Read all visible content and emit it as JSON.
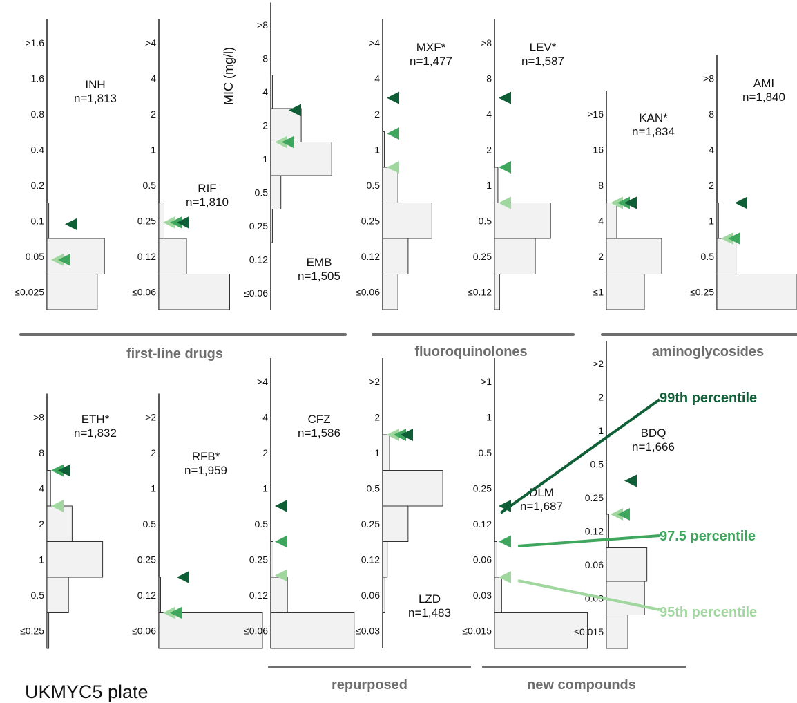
{
  "plate_label": "UKMYC5 plate",
  "colors": {
    "p99": "#0e5e36",
    "p975": "#3fa65e",
    "p95": "#9fd79e",
    "bar_fill": "#f2f2f2",
    "bar_stroke": "#333333",
    "group_line": "#6e6e6e"
  },
  "legend": {
    "p99": "99th percentile",
    "p975": "97.5 percentile",
    "p95": "95th percentile"
  },
  "chart_data": {
    "type": "bar",
    "orientation": "horizontal",
    "ylabel": "MIC (mg/l)",
    "groups": [
      {
        "label": "first-line drugs"
      },
      {
        "label": "fluoroquinolones"
      },
      {
        "label": "aminoglycosides"
      },
      {
        "label": "repurposed"
      },
      {
        "label": "new compounds"
      }
    ],
    "panels": [
      {
        "drug": "INH",
        "n": "n=1,813",
        "ticks": [
          "≤0.025",
          "0.05",
          "0.1",
          "0.2",
          "0.4",
          "0.8",
          "1.6",
          ">1.6"
        ],
        "values": [
          0.28,
          0.32,
          0.01,
          0.0,
          0,
          0,
          0,
          0
        ],
        "p95": 1.4,
        "p975": 1.4,
        "p99": 2.4
      },
      {
        "drug": "RIF",
        "n": "n=1,810",
        "ticks": [
          "≤0.06",
          "0.12",
          "0.25",
          "0.5",
          "1",
          "2",
          "4",
          ">4"
        ],
        "values": [
          0.41,
          0.16,
          0.03,
          0,
          0,
          0,
          0,
          0
        ],
        "p95": 2.45,
        "p975": 2.45,
        "p99": 2.45
      },
      {
        "drug": "EMB",
        "n": "n=1,505",
        "ticks": [
          "≤0.06",
          "0.12",
          "0.25",
          "0.5",
          "1",
          "2",
          "4",
          "8",
          ">8"
        ],
        "values": [
          0,
          0,
          0.01,
          0.06,
          0.36,
          0.18,
          0.01,
          0,
          0
        ],
        "p95": 5.0,
        "p975": 5.0,
        "p99": 5.95
      },
      {
        "drug": "MXF*",
        "n": "n=1,477",
        "ticks": [
          "≤0.06",
          "0.12",
          "0.25",
          "0.5",
          "1",
          "2",
          "4",
          ">4"
        ],
        "values": [
          0.09,
          0.15,
          0.29,
          0.09,
          0.01,
          0,
          0,
          0
        ],
        "p95": 4.0,
        "p975": 4.95,
        "p99": 5.95
      },
      {
        "drug": "LEV*",
        "n": "n=1,587",
        "ticks": [
          "≤0.12",
          "0.25",
          "0.5",
          "1",
          "2",
          "4",
          "8",
          ">8"
        ],
        "values": [
          0.03,
          0.24,
          0.33,
          0.02,
          0,
          0,
          0,
          0
        ],
        "p95": 3.0,
        "p975": 4.0,
        "p99": 5.95
      },
      {
        "drug": "KAN*",
        "n": "n=1,834",
        "ticks": [
          "≤1",
          "2",
          "4",
          "8",
          "16",
          ">16"
        ],
        "values": [
          0.22,
          0.32,
          0.06,
          0,
          0,
          0
        ],
        "p95": 3.0,
        "p975": 3.0,
        "p99": 3.0
      },
      {
        "drug": "AMI",
        "n": "n=1,840",
        "ticks": [
          "≤0.25",
          "0.5",
          "1",
          "2",
          "4",
          "8",
          ">8"
        ],
        "values": [
          0.5,
          0.12,
          0.01,
          0,
          0,
          0,
          0
        ],
        "p95": 2.0,
        "p975": 2.0,
        "p99": 3.0
      },
      {
        "drug": "ETH*",
        "n": "n=1,832",
        "ticks": [
          "≤0.25",
          "0.5",
          "1",
          "2",
          "4",
          "8",
          ">8"
        ],
        "values": [
          0.01,
          0.12,
          0.31,
          0.14,
          0.02,
          0,
          0
        ],
        "p95": 4.0,
        "p975": 5.0,
        "p99": 5.0
      },
      {
        "drug": "RFB*",
        "n": "n=1,959",
        "ticks": [
          "≤0.06",
          "0.12",
          "0.25",
          "0.5",
          "1",
          "2",
          ">2"
        ],
        "values": [
          0.6,
          0.01,
          0,
          0,
          0,
          0,
          0
        ],
        "p95": 1.0,
        "p975": 1.0,
        "p99": 2.0
      },
      {
        "drug": "CFZ",
        "n": "n=1,586",
        "ticks": [
          "≤0.06",
          "0.12",
          "0.25",
          "0.5",
          "1",
          "2",
          "4",
          ">4"
        ],
        "values": [
          0.35,
          0.07,
          0.01,
          0,
          0,
          0,
          0,
          0
        ],
        "p95": 2.05,
        "p975": 3.0,
        "p99": 4.0
      },
      {
        "drug": "LZD",
        "n": "n=1,483",
        "ticks": [
          "≤0.03",
          "0.06",
          "0.12",
          "0.25",
          "0.5",
          "1",
          "2",
          ">2"
        ],
        "values": [
          0,
          0.01,
          0.02,
          0.11,
          0.26,
          0.03,
          0,
          0
        ],
        "p95": 6.0,
        "p975": 6.0,
        "p99": 6.0
      },
      {
        "drug": "DLM",
        "n": "n=1,687",
        "ticks": [
          "≤0.015",
          "0.03",
          "0.06",
          "0.12",
          "0.25",
          "0.5",
          "1",
          ">1"
        ],
        "values": [
          0.39,
          0.03,
          0.01,
          0,
          0,
          0,
          0,
          0
        ],
        "p95": 2.0,
        "p975": 3.0,
        "p99": 4.0
      },
      {
        "drug": "BDQ",
        "n": "n=1,666",
        "ticks": [
          "≤0.015",
          "0.03",
          "0.06",
          "0.12",
          "0.25",
          "0.5",
          "1",
          "2",
          ">2"
        ],
        "values": [
          0.09,
          0.16,
          0.17,
          0.01,
          0,
          0,
          0,
          0,
          0
        ],
        "p95": 4.0,
        "p975": 4.0,
        "p99": 5.0
      }
    ]
  }
}
